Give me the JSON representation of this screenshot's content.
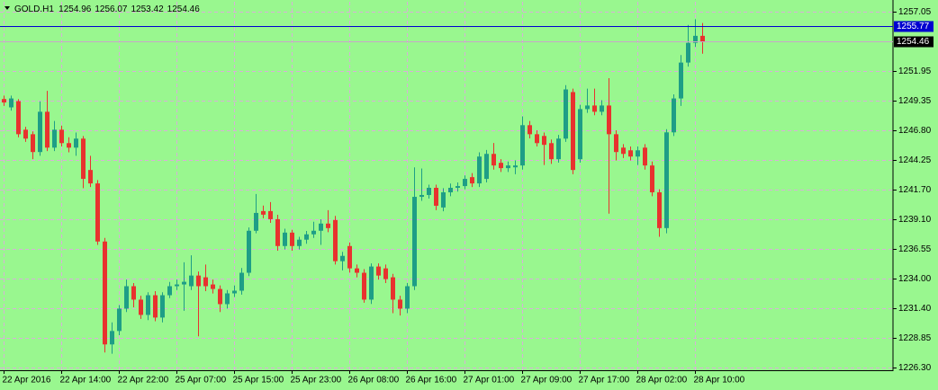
{
  "chart_data": {
    "type": "candlestick",
    "title": "GOLD.H1",
    "categories": [
      "22 Apr 2016",
      null,
      null,
      null,
      null,
      null,
      null,
      null,
      "22 Apr 14:00",
      null,
      null,
      null,
      null,
      null,
      null,
      null,
      "22 Apr 22:00",
      null,
      null,
      null,
      null,
      null,
      null,
      null,
      "25 Apr 07:00",
      null,
      null,
      null,
      null,
      null,
      null,
      null,
      "25 Apr 15:00",
      null,
      null,
      null,
      null,
      null,
      null,
      null,
      "25 Apr 23:00",
      null,
      null,
      null,
      null,
      null,
      null,
      null,
      "26 Apr 08:00",
      null,
      null,
      null,
      null,
      null,
      null,
      null,
      "26 Apr 16:00",
      null,
      null,
      null,
      null,
      null,
      null,
      null,
      "27 Apr 01:00",
      null,
      null,
      null,
      null,
      null,
      null,
      null,
      "27 Apr 09:00",
      null,
      null,
      null,
      null,
      null,
      null,
      null,
      "27 Apr 17:00",
      null,
      null,
      null,
      null,
      null,
      null,
      null,
      "28 Apr 02:00",
      null,
      null,
      null,
      null,
      null,
      null,
      null,
      "28 Apr 10:00",
      null
    ],
    "open": [
      1249.5,
      1248.78,
      1249.32,
      1246.85,
      1246.46,
      1244.92,
      1248.4,
      1245.3,
      1246.85,
      1245.69,
      1245.3,
      1246.08,
      1243.37,
      1242.21,
      1237.19,
      1228.3,
      1229.46,
      1231.39,
      1233.33,
      1232.17,
      1230.85,
      1232.55,
      1230.62,
      1232.55,
      1233.33,
      1233.48,
      1233.33,
      1234.25,
      1234.1,
      1233.48,
      1233.09,
      1231.78,
      1232.71,
      1232.94,
      1234.49,
      1238.12,
      1239.82,
      1239.82,
      1239.12,
      1236.8,
      1237.96,
      1236.8,
      1237.35,
      1237.81,
      1238.12,
      1238.74,
      1239.05,
      1235.49,
      1236.8,
      1234.87,
      1234.49,
      1232.17,
      1235.03,
      1234.87,
      1234.1,
      1232.17,
      1231.39,
      1233.33,
      1241.05,
      1241.21,
      1241.83,
      1240.13,
      1241.44,
      1241.83,
      1241.98,
      1242.75,
      1242.21,
      1242.6,
      1244.76,
      1243.99,
      1243.53,
      1243.6,
      1243.76,
      1247.24,
      1246.46,
      1246.31,
      1245.69,
      1244.3,
      1246.08,
      1250.1,
      1244.3,
      1248.63,
      1248.94,
      1248.4,
      1248.94,
      1246.46,
      1245.3,
      1245.07,
      1244.53,
      1245.3,
      1243.76,
      1241.44,
      1238.35,
      1246.62,
      1249.55,
      1252.65,
      1254.35,
      1254.96
    ],
    "high": [
      1249.8,
      1249.8,
      1249.5,
      1247.1,
      1246.7,
      1249.3,
      1250.2,
      1247.6,
      1247.2,
      1246.2,
      1246.6,
      1246.3,
      1244.6,
      1242.5,
      1237.5,
      1230.2,
      1231.7,
      1233.9,
      1233.6,
      1232.5,
      1232.8,
      1232.9,
      1232.8,
      1233.7,
      1233.9,
      1235.4,
      1236.0,
      1234.6,
      1235.2,
      1233.9,
      1233.4,
      1233.0,
      1233.4,
      1234.9,
      1238.4,
      1241.3,
      1240.3,
      1240.6,
      1239.5,
      1238.3,
      1238.2,
      1237.6,
      1238.1,
      1238.9,
      1239.1,
      1239.9,
      1239.4,
      1236.3,
      1237.1,
      1235.2,
      1234.8,
      1235.3,
      1235.3,
      1235.2,
      1234.4,
      1232.5,
      1233.6,
      1243.6,
      1243.5,
      1242.1,
      1242.1,
      1241.8,
      1242.2,
      1242.3,
      1242.9,
      1243.1,
      1244.9,
      1245.1,
      1245.7,
      1244.3,
      1244.1,
      1244.2,
      1248.0,
      1247.6,
      1246.8,
      1246.6,
      1246.0,
      1246.4,
      1250.7,
      1250.4,
      1249.0,
      1250.4,
      1250.4,
      1249.4,
      1251.3,
      1246.8,
      1245.6,
      1245.4,
      1245.4,
      1245.6,
      1244.1,
      1241.7,
      1246.9,
      1249.9,
      1253.3,
      1255.9,
      1256.4,
      1256.07
    ],
    "low": [
      1248.9,
      1248.5,
      1246.2,
      1245.8,
      1244.3,
      1244.6,
      1245.0,
      1245.0,
      1245.4,
      1244.9,
      1244.6,
      1241.8,
      1241.9,
      1236.9,
      1227.6,
      1227.5,
      1229.1,
      1231.1,
      1231.5,
      1230.5,
      1230.4,
      1230.3,
      1230.2,
      1232.3,
      1233.0,
      1231.2,
      1233.0,
      1229.0,
      1232.9,
      1232.7,
      1231.1,
      1231.4,
      1232.4,
      1232.6,
      1234.2,
      1237.9,
      1239.2,
      1238.8,
      1236.4,
      1236.5,
      1236.4,
      1236.5,
      1237.0,
      1237.5,
      1236.9,
      1238.0,
      1235.2,
      1234.7,
      1234.5,
      1234.1,
      1231.9,
      1231.8,
      1233.9,
      1233.6,
      1231.0,
      1230.8,
      1231.0,
      1233.0,
      1240.7,
      1240.9,
      1239.9,
      1239.8,
      1241.1,
      1241.5,
      1241.7,
      1241.9,
      1241.9,
      1242.3,
      1243.4,
      1243.2,
      1243.2,
      1243.0,
      1243.4,
      1246.1,
      1245.4,
      1243.8,
      1243.9,
      1244.0,
      1245.8,
      1243.0,
      1244.0,
      1248.3,
      1248.1,
      1248.1,
      1239.6,
      1244.2,
      1244.4,
      1244.2,
      1243.8,
      1243.4,
      1241.1,
      1237.6,
      1237.9,
      1246.3,
      1248.9,
      1252.3,
      1254.0,
      1253.42
    ],
    "close": [
      1249.2,
      1249.55,
      1246.46,
      1246.08,
      1244.92,
      1248.4,
      1245.3,
      1246.85,
      1245.69,
      1245.3,
      1246.08,
      1242.6,
      1242.21,
      1237.19,
      1228.3,
      1229.46,
      1231.39,
      1233.33,
      1232.17,
      1230.85,
      1232.55,
      1230.62,
      1232.55,
      1233.33,
      1233.48,
      1233.71,
      1234.25,
      1233.33,
      1233.33,
      1233.09,
      1231.78,
      1232.71,
      1232.94,
      1234.49,
      1238.12,
      1239.66,
      1239.51,
      1239.12,
      1236.8,
      1237.96,
      1236.8,
      1237.35,
      1237.81,
      1238.12,
      1238.74,
      1238.35,
      1235.49,
      1235.95,
      1234.87,
      1234.49,
      1232.17,
      1235.03,
      1234.25,
      1233.94,
      1232.17,
      1231.39,
      1233.33,
      1241.05,
      1241.21,
      1241.83,
      1240.28,
      1241.44,
      1241.83,
      1241.98,
      1242.6,
      1242.21,
      1244.53,
      1244.76,
      1243.76,
      1243.53,
      1243.76,
      1243.76,
      1247.24,
      1246.46,
      1245.69,
      1245.54,
      1244.3,
      1246.08,
      1250.33,
      1243.37,
      1248.63,
      1248.94,
      1248.4,
      1248.94,
      1246.46,
      1244.92,
      1244.76,
      1244.53,
      1245.07,
      1243.76,
      1241.44,
      1238.35,
      1246.62,
      1249.55,
      1252.65,
      1254.35,
      1254.96,
      1254.46
    ],
    "ylim": [
      1226.07,
      1257.9
    ],
    "yticks": [
      1257.05,
      1251.95,
      1249.35,
      {
        "value": 1246.8,
        "label": "1246.80"
      },
      1244.25,
      {
        "value": 1241.7,
        "label": "1241.70"
      },
      {
        "value": 1239.1,
        "label": "1239.10"
      },
      1236.55,
      {
        "value": 1234.0,
        "label": "1234.00"
      },
      {
        "value": 1231.4,
        "label": "1231.40"
      },
      1228.85,
      {
        "value": 1226.3,
        "label": "1226.30"
      }
    ],
    "ask": 1255.77,
    "ask_color": "#0000d0",
    "bull_color": "#1e9e86",
    "bear_color": "#e8322e",
    "background": "#99f78f",
    "grid": true
  }
}
